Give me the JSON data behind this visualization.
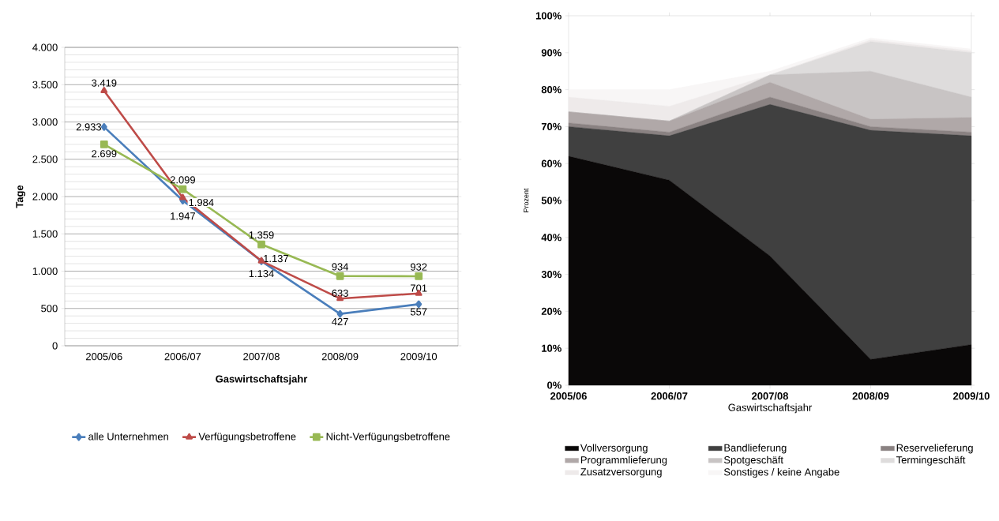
{
  "chart_data": [
    {
      "type": "line",
      "xlabel": "Gaswirtschaftsjahr",
      "ylabel": "Tage",
      "categories": [
        "2005/06",
        "2006/07",
        "2007/08",
        "2008/09",
        "2009/10"
      ],
      "series": [
        {
          "name": "alle Unternehmen",
          "color": "#4a7ebb",
          "marker": "diamond",
          "values": [
            2933,
            1947,
            1134,
            427,
            557
          ],
          "value_labels": [
            "2.933",
            "1.947",
            "1.134",
            "427",
            "557"
          ]
        },
        {
          "name": "Verfügungsbetroffene",
          "color": "#be4b48",
          "marker": "triangle",
          "values": [
            3419,
            1984,
            1137,
            633,
            701
          ],
          "value_labels": [
            "3.419",
            "1.984",
            "1.137",
            "633",
            "701"
          ]
        },
        {
          "name": "Nicht-Verfügungsbetroffene",
          "color": "#98b954",
          "marker": "square",
          "values": [
            2699,
            2099,
            1359,
            934,
            932
          ],
          "value_labels": [
            "2.699",
            "2.099",
            "1.359",
            "934",
            "932"
          ]
        }
      ],
      "ylim": [
        0,
        4000
      ],
      "yticks": [
        {
          "value": 0,
          "label": "0"
        },
        {
          "value": 500,
          "label": "500"
        },
        {
          "value": 1000,
          "label": "1.000"
        },
        {
          "value": 1500,
          "label": "1.500"
        },
        {
          "value": 2000,
          "label": "2.000"
        },
        {
          "value": 2500,
          "label": "2.500"
        },
        {
          "value": 3000,
          "label": "3.000"
        },
        {
          "value": 3500,
          "label": "3.500"
        },
        {
          "value": 4000,
          "label": "4.000"
        }
      ],
      "grid": "y",
      "legend": "bottom"
    },
    {
      "type": "area",
      "stacked": true,
      "xlabel": "Gaswirtschaftsjahr",
      "ylabel": "Prozent",
      "categories": [
        "2005/06",
        "2006/07",
        "2007/08",
        "2008/09",
        "2009/10"
      ],
      "series": [
        {
          "name": "Vollversorgung",
          "color": "#0a0808",
          "values": [
            62,
            55.5,
            35,
            7,
            11
          ]
        },
        {
          "name": "Bandlieferung",
          "color": "#404040",
          "values": [
            8,
            12,
            41,
            62,
            56.5
          ]
        },
        {
          "name": "Reservelieferung",
          "color": "#8a8282",
          "values": [
            1,
            1,
            2,
            1,
            1
          ]
        },
        {
          "name": "Programmlieferung",
          "color": "#b0a8a8",
          "values": [
            3,
            3,
            4,
            2,
            4
          ]
        },
        {
          "name": "Spotgeschäft",
          "color": "#c8c4c4",
          "values": [
            0,
            0,
            2,
            13,
            5.5
          ]
        },
        {
          "name": "Termingeschäft",
          "color": "#dedcdc",
          "values": [
            0,
            0,
            0,
            8,
            12
          ]
        },
        {
          "name": "Zusatzversorgung",
          "color": "#eeeaea",
          "values": [
            4,
            4,
            0,
            0.5,
            0.5
          ]
        },
        {
          "name": "Sonstiges / keine Angabe",
          "color": "#f8f6f6",
          "values": [
            2,
            4.5,
            1,
            0.5,
            0.5
          ]
        }
      ],
      "ylim": [
        0,
        100
      ],
      "yticks": [
        {
          "value": 0,
          "label": "0%"
        },
        {
          "value": 10,
          "label": "10%"
        },
        {
          "value": 20,
          "label": "20%"
        },
        {
          "value": 30,
          "label": "30%"
        },
        {
          "value": 40,
          "label": "40%"
        },
        {
          "value": 50,
          "label": "50%"
        },
        {
          "value": 60,
          "label": "60%"
        },
        {
          "value": 70,
          "label": "70%"
        },
        {
          "value": 80,
          "label": "80%"
        },
        {
          "value": 90,
          "label": "90%"
        },
        {
          "value": 100,
          "label": "100%"
        }
      ],
      "legend": "bottom"
    }
  ]
}
